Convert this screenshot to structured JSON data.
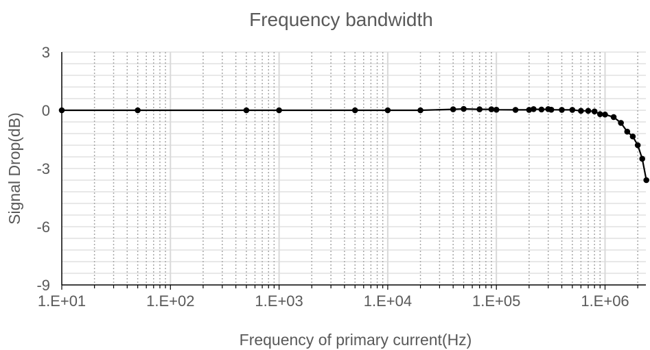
{
  "chart_data": {
    "type": "scatter",
    "mode": "lines+markers",
    "title": "Frequency bandwidth",
    "xlabel": "Frequency of primary current(Hz)",
    "ylabel": "Signal Drop(dB)",
    "xscale": "log",
    "xlim": [
      10,
      3000000
    ],
    "ylim": [
      -9,
      3
    ],
    "x_ticks": [
      10,
      100,
      1000,
      10000,
      100000,
      1000000
    ],
    "x_tick_labels": [
      "1.E+01",
      "1.E+02",
      "1.E+03",
      "1.E+04",
      "1.E+05",
      "1.E+06"
    ],
    "y_ticks": [
      3,
      0,
      -3,
      -6,
      -9
    ],
    "y_tick_labels": [
      "3",
      "0",
      "-3",
      "-6",
      "-9"
    ],
    "y_minor_step": 0.6,
    "grid": {
      "major_vertical": true,
      "minor_vertical_dotted": true,
      "horizontal": true
    },
    "legend": "none",
    "colors": {
      "series": "#000000",
      "text": "#595959",
      "grid_major": "#d9d9d9",
      "grid_minor": "#a6a6a6",
      "axis": "#000000"
    },
    "series": [
      {
        "x": [
          10,
          50,
          500,
          1000,
          5000,
          10000,
          20000,
          40000,
          50000,
          70000,
          90000,
          100000,
          150000,
          200000,
          220000,
          260000,
          300000,
          320000,
          400000,
          500000,
          600000,
          700000,
          800000,
          900000,
          1000000,
          1200000,
          1400000,
          1600000,
          1800000,
          2000000,
          2200000,
          2400000
        ],
        "y": [
          0,
          0,
          0,
          0,
          0,
          0,
          0,
          0.05,
          0.07,
          0.05,
          0.05,
          0.03,
          0.02,
          0.02,
          0.06,
          0.04,
          0.06,
          0.03,
          0.02,
          0.02,
          -0.03,
          -0.03,
          -0.06,
          -0.2,
          -0.22,
          -0.35,
          -0.65,
          -1.1,
          -1.35,
          -1.8,
          -2.5,
          -3.6
        ]
      }
    ]
  }
}
